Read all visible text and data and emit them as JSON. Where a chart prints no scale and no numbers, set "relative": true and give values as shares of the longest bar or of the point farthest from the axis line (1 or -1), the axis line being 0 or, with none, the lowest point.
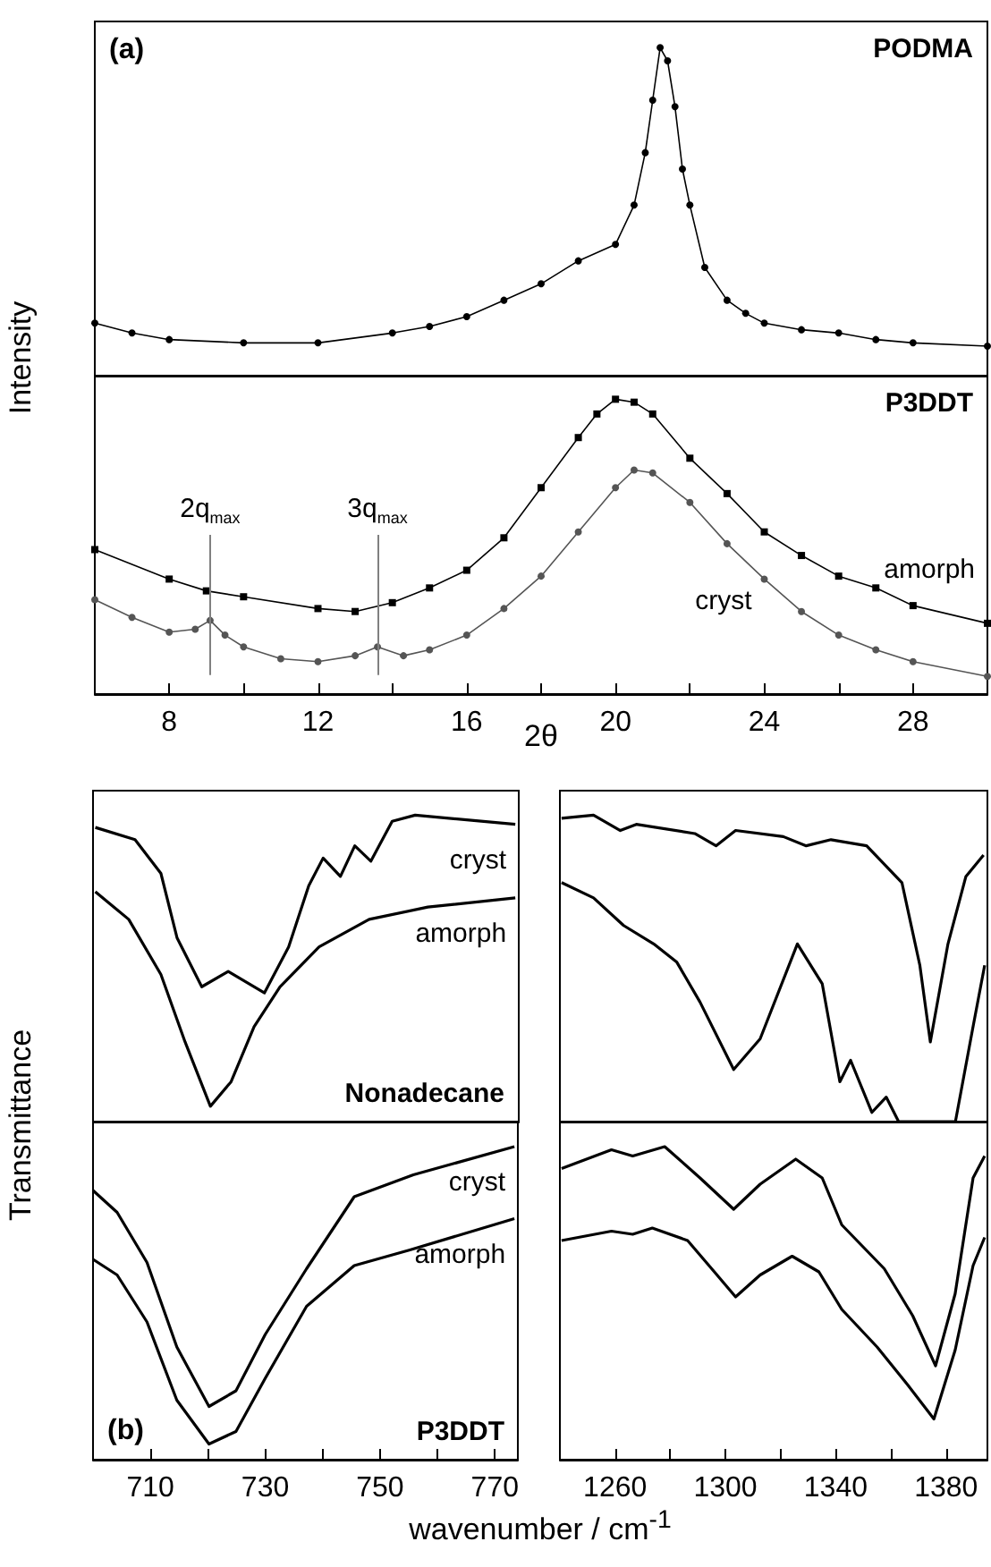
{
  "chart_data": [
    {
      "type": "line",
      "title": "PODMA",
      "ylabel": "Intensity",
      "annotations": [
        "(a)"
      ],
      "relative": true,
      "marker": "circle",
      "xlim": [
        6,
        30
      ],
      "series": [
        {
          "color": "#000000",
          "x": [
            6,
            7,
            8,
            10,
            12,
            14,
            15,
            16,
            17,
            18,
            19,
            20,
            20.5,
            20.8,
            21,
            21.2,
            21.4,
            21.6,
            21.8,
            22,
            22.4,
            23,
            23.5,
            24,
            25,
            26,
            27,
            28,
            30
          ],
          "values": [
            0.16,
            0.13,
            0.11,
            0.1,
            0.1,
            0.13,
            0.15,
            0.18,
            0.23,
            0.28,
            0.35,
            0.4,
            0.52,
            0.68,
            0.84,
            1.0,
            0.96,
            0.82,
            0.63,
            0.52,
            0.33,
            0.23,
            0.19,
            0.16,
            0.14,
            0.13,
            0.11,
            0.1,
            0.09
          ]
        }
      ]
    },
    {
      "type": "line",
      "title": "P3DDT",
      "xlabel": "2θ",
      "relative": true,
      "xlim": [
        6,
        30
      ],
      "xticks": [
        8,
        {
          "value": 10,
          "label": null
        },
        12,
        {
          "value": 14,
          "label": null
        },
        16,
        {
          "value": 18,
          "label": null
        },
        20,
        {
          "value": 22,
          "label": null
        },
        24,
        {
          "value": 26,
          "label": null
        },
        28
      ],
      "ref_lines": [
        {
          "axis": "x",
          "value": 9.1,
          "label": "2q$_{max}$",
          "color": "#808080"
        },
        {
          "axis": "x",
          "value": 13.6,
          "label": "3q$_{max}$",
          "color": "#808080"
        }
      ],
      "series": [
        {
          "name": "amorph",
          "color": "#000000",
          "marker": "square",
          "x": [
            6,
            8,
            9,
            10,
            12,
            13,
            14,
            15,
            16,
            17,
            18,
            19,
            19.5,
            20,
            20.5,
            21,
            22,
            23,
            24,
            25,
            26,
            27,
            28,
            30
          ],
          "values": [
            0.49,
            0.39,
            0.35,
            0.33,
            0.29,
            0.28,
            0.31,
            0.36,
            0.42,
            0.53,
            0.7,
            0.87,
            0.95,
            1.0,
            0.99,
            0.95,
            0.8,
            0.68,
            0.55,
            0.47,
            0.4,
            0.36,
            0.3,
            0.24
          ]
        },
        {
          "name": "cryst",
          "color": "#555555",
          "marker": "circle",
          "x": [
            6,
            7,
            8,
            8.7,
            9.1,
            9.5,
            10,
            11,
            12,
            13,
            13.6,
            14.3,
            15,
            16,
            17,
            18,
            19,
            20,
            20.5,
            21,
            22,
            23,
            24,
            25,
            26,
            27,
            28,
            30
          ],
          "values": [
            0.32,
            0.26,
            0.21,
            0.22,
            0.25,
            0.2,
            0.16,
            0.12,
            0.11,
            0.13,
            0.16,
            0.13,
            0.15,
            0.2,
            0.29,
            0.4,
            0.55,
            0.7,
            0.76,
            0.75,
            0.65,
            0.51,
            0.39,
            0.28,
            0.2,
            0.15,
            0.11,
            0.06
          ]
        }
      ]
    },
    {
      "type": "line",
      "title": "Nonadecane",
      "ylabel": "Transmittance",
      "relative": true,
      "xlim": [
        700,
        774
      ],
      "series": [
        {
          "name": "cryst",
          "color": "#000000",
          "x": [
            700.4,
            707.3,
            711.8,
            714.6,
            718.9,
            723.5,
            729.8,
            734,
            737.5,
            740,
            743,
            745.5,
            748.3,
            752,
            756,
            773.4
          ],
          "values": [
            0.96,
            0.92,
            0.81,
            0.6,
            0.44,
            0.49,
            0.42,
            0.57,
            0.77,
            0.86,
            0.8,
            0.9,
            0.85,
            0.98,
            1.0,
            0.97
          ]
        },
        {
          "name": "amorph",
          "color": "#000000",
          "x": [
            700.4,
            706.2,
            711.8,
            716,
            720.4,
            724,
            728,
            732.5,
            739.3,
            748,
            758.2,
            773.4
          ],
          "values": [
            0.75,
            0.66,
            0.48,
            0.26,
            0.05,
            0.13,
            0.31,
            0.44,
            0.57,
            0.66,
            0.7,
            0.73
          ]
        }
      ]
    },
    {
      "type": "line",
      "relative": true,
      "xlim": [
        1240,
        1395
      ],
      "series": [
        {
          "color": "#000000",
          "x": [
            1240.6,
            1252.2,
            1261.9,
            1267.7,
            1288.9,
            1296.6,
            1303.7,
            1321,
            1329.3,
            1338.3,
            1351.2,
            1364,
            1370.5,
            1374.3,
            1380.7,
            1387.2,
            1393.6
          ],
          "values": [
            0.99,
            1.0,
            0.95,
            0.97,
            0.94,
            0.9,
            0.95,
            0.93,
            0.9,
            0.92,
            0.9,
            0.78,
            0.51,
            0.26,
            0.58,
            0.8,
            0.87
          ]
        },
        {
          "color": "#000000",
          "x": [
            1240.6,
            1252.2,
            1263.1,
            1274,
            1282.4,
            1290.8,
            1303,
            1312.6,
            1326.1,
            1335.1,
            1341.5,
            1345.4,
            1353.1,
            1358.3,
            1362.8,
            1383.4,
            1389.8,
            1394
          ],
          "values": [
            0.78,
            0.73,
            0.64,
            0.58,
            0.52,
            0.39,
            0.17,
            0.27,
            0.58,
            0.45,
            0.13,
            0.2,
            0.03,
            0.08,
            0,
            0,
            0.31,
            0.51
          ]
        }
      ]
    },
    {
      "type": "line",
      "title": "P3DDT",
      "xlabel": "wavenumber / cm$^{-1}$",
      "annotations": [
        "(b)"
      ],
      "relative": true,
      "xlim": [
        700,
        774
      ],
      "xticks": [
        710,
        {
          "value": 720,
          "label": null
        },
        730,
        {
          "value": 740,
          "label": null
        },
        750,
        {
          "value": 760,
          "label": null
        },
        770
      ],
      "series": [
        {
          "name": "cryst",
          "color": "#000000",
          "x": [
            700,
            704.2,
            709.4,
            714.6,
            720.2,
            724.9,
            730,
            737.2,
            745.5,
            755.8,
            773.4
          ],
          "values": [
            0.86,
            0.79,
            0.63,
            0.36,
            0.17,
            0.22,
            0.4,
            0.61,
            0.84,
            0.91,
            1.0
          ]
        },
        {
          "name": "amorph",
          "color": "#000000",
          "x": [
            700,
            704.2,
            709.4,
            714.6,
            720.2,
            724.9,
            730,
            737.2,
            745.5,
            755.2,
            773.4
          ],
          "values": [
            0.64,
            0.59,
            0.44,
            0.19,
            0.05,
            0.09,
            0.26,
            0.49,
            0.62,
            0.67,
            0.77
          ]
        }
      ]
    },
    {
      "type": "line",
      "relative": true,
      "xlim": [
        1240,
        1395
      ],
      "xticks": [
        1260,
        {
          "value": 1280,
          "label": null
        },
        1300,
        {
          "value": 1320,
          "label": null
        },
        1340,
        {
          "value": 1360,
          "label": null
        },
        1380
      ],
      "series": [
        {
          "color": "#000000",
          "x": [
            1240.6,
            1258.7,
            1266.4,
            1278,
            1290.8,
            1303,
            1312.6,
            1325.5,
            1335.1,
            1342.2,
            1357.6,
            1367.9,
            1376.2,
            1383.3,
            1389.8,
            1394
          ],
          "values": [
            0.93,
            0.99,
            0.97,
            1.0,
            0.9,
            0.8,
            0.88,
            0.96,
            0.9,
            0.75,
            0.61,
            0.46,
            0.3,
            0.53,
            0.9,
            0.97
          ]
        },
        {
          "color": "#000000",
          "x": [
            1240.6,
            1258.7,
            1266.4,
            1273.5,
            1286.3,
            1296,
            1303.7,
            1312.6,
            1324.2,
            1333.9,
            1342.2,
            1355,
            1366,
            1375.6,
            1383.3,
            1389.8,
            1394
          ],
          "values": [
            0.7,
            0.73,
            0.72,
            0.74,
            0.7,
            0.6,
            0.52,
            0.59,
            0.65,
            0.6,
            0.48,
            0.36,
            0.24,
            0.13,
            0.35,
            0.62,
            0.71
          ]
        }
      ]
    }
  ]
}
